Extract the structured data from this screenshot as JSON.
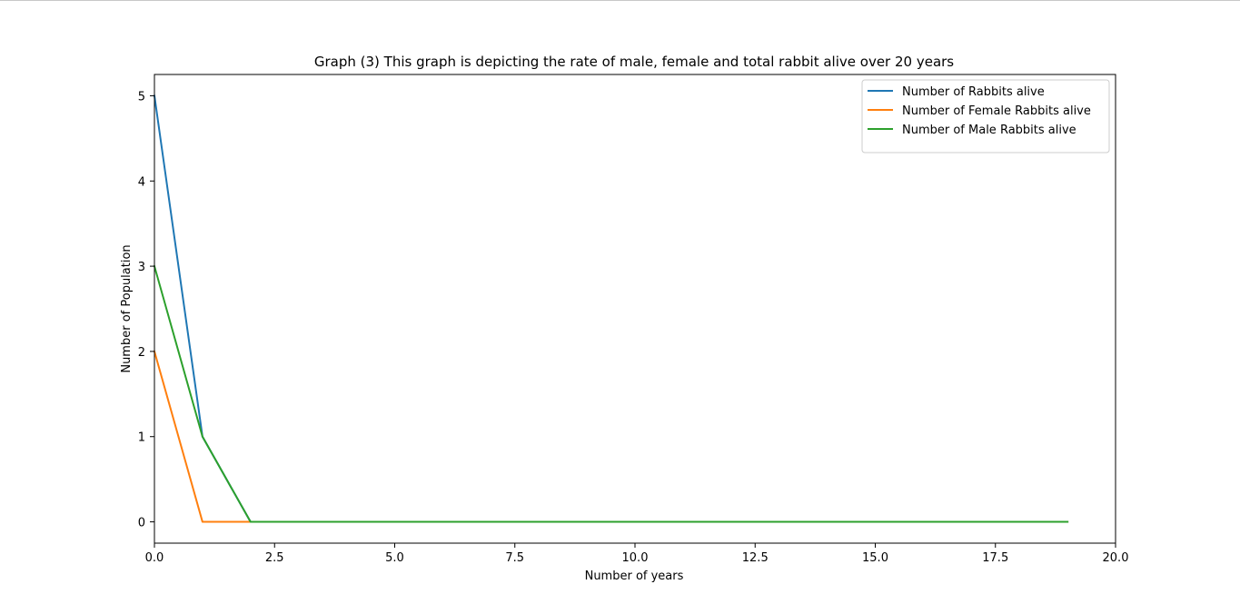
{
  "chart_data": {
    "type": "line",
    "title": "Graph (3) This graph is depicting the rate of male, female and total rabbit alive over 20 years",
    "xlabel": "Number of years",
    "ylabel": "Number of Population",
    "xlim": [
      0,
      20
    ],
    "ylim": [
      -0.25,
      5.25
    ],
    "xticks": [
      0,
      2.5,
      5,
      7.5,
      10,
      12.5,
      15,
      17.5,
      20
    ],
    "xtick_labels": [
      "0.0",
      "2.5",
      "5.0",
      "7.5",
      "10.0",
      "12.5",
      "15.0",
      "17.5",
      "20.0"
    ],
    "yticks": [
      0,
      1,
      2,
      3,
      4,
      5
    ],
    "ytick_labels": [
      "0",
      "1",
      "2",
      "3",
      "4",
      "5"
    ],
    "grid": false,
    "legend_position": "top-right",
    "x": [
      0,
      1,
      2,
      3,
      4,
      5,
      6,
      7,
      8,
      9,
      10,
      11,
      12,
      13,
      14,
      15,
      16,
      17,
      18,
      19
    ],
    "series": [
      {
        "name": "Number of Rabbits alive",
        "color": "#1f77b4",
        "values": [
          5,
          1,
          0,
          0,
          0,
          0,
          0,
          0,
          0,
          0,
          0,
          0,
          0,
          0,
          0,
          0,
          0,
          0,
          0,
          0
        ]
      },
      {
        "name": "Number of Female Rabbits alive",
        "color": "#ff7f0e",
        "values": [
          2,
          0,
          0,
          0,
          0,
          0,
          0,
          0,
          0,
          0,
          0,
          0,
          0,
          0,
          0,
          0,
          0,
          0,
          0,
          0
        ]
      },
      {
        "name": "Number of Male Rabbits alive",
        "color": "#2ca02c",
        "values": [
          3,
          1,
          0,
          0,
          0,
          0,
          0,
          0,
          0,
          0,
          0,
          0,
          0,
          0,
          0,
          0,
          0,
          0,
          0,
          0
        ]
      }
    ]
  }
}
